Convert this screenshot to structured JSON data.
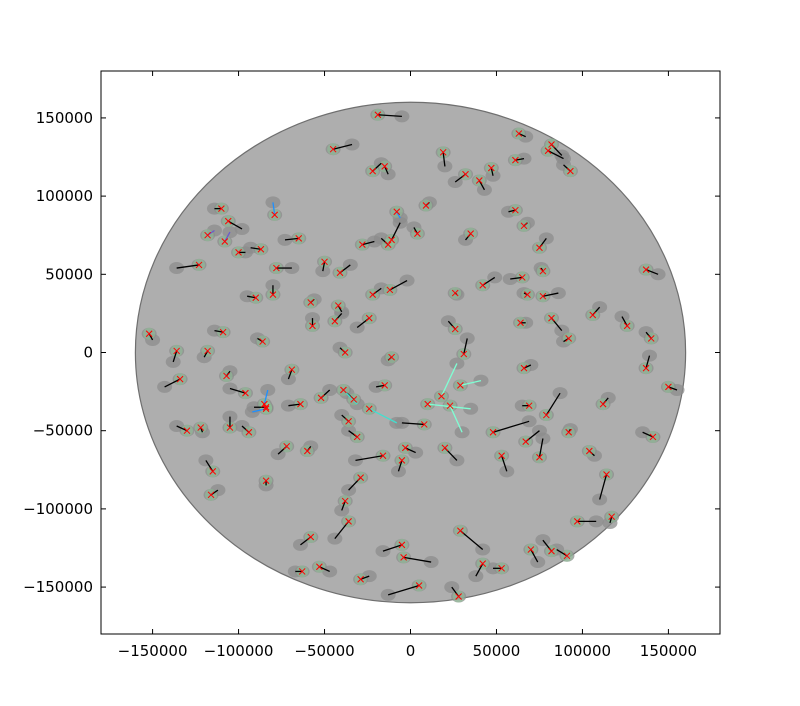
{
  "chart_data": {
    "type": "scatter",
    "title": "",
    "xlabel": "",
    "ylabel": "",
    "xlim": [
      -180000,
      180000
    ],
    "ylim": [
      -180000,
      180000
    ],
    "x_ticks": [
      -150000,
      -100000,
      -50000,
      0,
      50000,
      100000,
      150000
    ],
    "y_ticks": [
      -150000,
      -100000,
      -50000,
      0,
      50000,
      100000,
      150000
    ],
    "x_tick_labels": [
      "−150000",
      "−100000",
      "−50000",
      "0",
      "50000",
      "100000",
      "150000"
    ],
    "y_tick_labels": [
      "−150000",
      "−100000",
      "−50000",
      "0",
      "50000",
      "100000",
      "150000"
    ],
    "grid": false,
    "field": {
      "center": [
        0,
        0
      ],
      "radius": 160000
    },
    "colors": {
      "field": "#aeaeae",
      "field_edge": "#6f6f6f",
      "blob": "#8c8c8c",
      "halo": "#8ecf9a",
      "marker": "#ff0000",
      "segment": "#000000",
      "highlight_1": "#7fffd4",
      "highlight_2": "#40e0d0",
      "highlight_3": "#1e90ff",
      "highlight_4": "#6a5acd"
    },
    "pairs": [
      [
        -19000,
        152000,
        -5000,
        151000,
        0
      ],
      [
        -45000,
        130000,
        -34000,
        133000,
        0
      ],
      [
        -15000,
        119000,
        -13000,
        114000,
        0
      ],
      [
        -22000,
        116000,
        -17000,
        121000,
        0
      ],
      [
        19000,
        128000,
        20000,
        119000,
        0
      ],
      [
        32000,
        114000,
        26000,
        109000,
        0
      ],
      [
        40000,
        110000,
        43000,
        104000,
        0
      ],
      [
        47000,
        118000,
        48000,
        113000,
        0
      ],
      [
        63000,
        140000,
        67000,
        138000,
        0
      ],
      [
        82000,
        133000,
        88000,
        126000,
        0
      ],
      [
        80000,
        129000,
        89000,
        124000,
        0
      ],
      [
        93000,
        116000,
        89000,
        120000,
        0
      ],
      [
        61000,
        123000,
        66000,
        124000,
        0
      ],
      [
        61000,
        91000,
        57000,
        90000,
        0
      ],
      [
        66000,
        81000,
        68000,
        83000,
        0
      ],
      [
        75000,
        67000,
        79000,
        73000,
        0
      ],
      [
        -123000,
        56000,
        -136000,
        54000,
        0
      ],
      [
        -110000,
        92000,
        -114000,
        92000,
        0
      ],
      [
        -106000,
        84000,
        -98000,
        79000,
        0
      ],
      [
        -100000,
        64000,
        -96000,
        64000,
        0
      ],
      [
        -87000,
        66000,
        -93000,
        67000,
        0
      ],
      [
        -78000,
        54000,
        -69000,
        54000,
        0
      ],
      [
        -65000,
        73000,
        -73000,
        72000,
        0
      ],
      [
        -80000,
        37000,
        -80000,
        43000,
        0
      ],
      [
        -90000,
        35000,
        -95000,
        36000,
        0
      ],
      [
        -86000,
        7000,
        -89000,
        9000,
        0
      ],
      [
        -109000,
        13000,
        -114000,
        14000,
        0
      ],
      [
        -152000,
        12000,
        -150000,
        8000,
        0
      ],
      [
        -136000,
        1000,
        -138000,
        -6000,
        0
      ],
      [
        -118000,
        1000,
        -120000,
        -3000,
        0
      ],
      [
        -134000,
        -17000,
        -143000,
        -22000,
        0
      ],
      [
        -107000,
        -15000,
        -105000,
        -12000,
        0
      ],
      [
        -96000,
        -26000,
        -105000,
        -23000,
        0
      ],
      [
        -105000,
        -48000,
        -105000,
        -41000,
        0
      ],
      [
        -94000,
        -51000,
        -98000,
        -47000,
        0
      ],
      [
        -122000,
        -48000,
        -121000,
        -51000,
        0
      ],
      [
        -130000,
        -50000,
        -136000,
        -47000,
        0
      ],
      [
        -115000,
        -76000,
        -119000,
        -69000,
        0
      ],
      [
        -116000,
        -91000,
        -112000,
        -88000,
        0
      ],
      [
        -84000,
        -82000,
        -84000,
        -85000,
        0
      ],
      [
        -72000,
        -60000,
        -77000,
        -65000,
        0
      ],
      [
        -60000,
        -63000,
        -58000,
        -60000,
        0
      ],
      [
        -64000,
        -33000,
        -71000,
        -34000,
        0
      ],
      [
        -69000,
        -11000,
        -71000,
        -17000,
        0
      ],
      [
        -58000,
        32000,
        -56000,
        34000,
        0
      ],
      [
        -57000,
        17000,
        -57000,
        22000,
        0
      ],
      [
        -42000,
        30000,
        -40000,
        26000,
        0
      ],
      [
        -44000,
        20000,
        -40000,
        25000,
        0
      ],
      [
        -38000,
        0,
        -41000,
        3000,
        0
      ],
      [
        -22000,
        37000,
        -17000,
        41000,
        0
      ],
      [
        -12000,
        40000,
        -2000,
        46000,
        0
      ],
      [
        -41000,
        51000,
        -35000,
        56000,
        0
      ],
      [
        -50000,
        58000,
        -51000,
        52000,
        0
      ],
      [
        -24000,
        22000,
        -31000,
        16000,
        0
      ],
      [
        -28000,
        69000,
        -21000,
        71000,
        0
      ],
      [
        -13000,
        69000,
        -17000,
        73000,
        0
      ],
      [
        -11000,
        72000,
        -6000,
        83000,
        0
      ],
      [
        4000,
        76000,
        2000,
        80000,
        0
      ],
      [
        9000,
        94000,
        11000,
        96000,
        0
      ],
      [
        26000,
        38000,
        27000,
        37000,
        0
      ],
      [
        35000,
        76000,
        32000,
        72000,
        0
      ],
      [
        42000,
        43000,
        49000,
        48000,
        0
      ],
      [
        65000,
        48000,
        58000,
        47000,
        0
      ],
      [
        77000,
        52000,
        76000,
        54000,
        0
      ],
      [
        68000,
        37000,
        66000,
        38000,
        0
      ],
      [
        77000,
        36000,
        86000,
        38000,
        0
      ],
      [
        64000,
        19000,
        67000,
        19000,
        0
      ],
      [
        82000,
        22000,
        88000,
        14000,
        0
      ],
      [
        92000,
        9000,
        89000,
        7000,
        0
      ],
      [
        106000,
        24000,
        110000,
        29000,
        0
      ],
      [
        126000,
        17000,
        123000,
        23000,
        0
      ],
      [
        140000,
        9000,
        137000,
        13000,
        0
      ],
      [
        137000,
        -10000,
        139000,
        -2000,
        0
      ],
      [
        137000,
        53000,
        144000,
        50000,
        0
      ],
      [
        150000,
        -22000,
        155000,
        -24000,
        0
      ],
      [
        141000,
        -54000,
        135000,
        -51000,
        0
      ],
      [
        112000,
        -33000,
        115000,
        -29000,
        0
      ],
      [
        104000,
        -63000,
        107000,
        -66000,
        0
      ],
      [
        114000,
        -78000,
        110000,
        -94000,
        0
      ],
      [
        97000,
        -108000,
        108000,
        -108000,
        0
      ],
      [
        117000,
        -105000,
        116000,
        -109000,
        0
      ],
      [
        91000,
        -130000,
        85000,
        -126000,
        0
      ],
      [
        82000,
        -127000,
        77000,
        -120000,
        0
      ],
      [
        70000,
        -126000,
        74000,
        -134000,
        0
      ],
      [
        53000,
        -138000,
        48000,
        -138000,
        0
      ],
      [
        42000,
        -135000,
        38000,
        -143000,
        0
      ],
      [
        29000,
        -114000,
        42000,
        -126000,
        0
      ],
      [
        28000,
        -156000,
        24000,
        -150000,
        0
      ],
      [
        5000,
        -149000,
        -13000,
        -155000,
        0
      ],
      [
        -5000,
        -123000,
        -16000,
        -127000,
        0
      ],
      [
        -4000,
        -131000,
        12000,
        -134000,
        0
      ],
      [
        -36000,
        -108000,
        -44000,
        -119000,
        0
      ],
      [
        -58000,
        -118000,
        -64000,
        -123000,
        0
      ],
      [
        -29000,
        -145000,
        -24000,
        -143000,
        0
      ],
      [
        -53000,
        -137000,
        -47000,
        -140000,
        0
      ],
      [
        -63000,
        -140000,
        -67000,
        -140000,
        0
      ],
      [
        -38000,
        -95000,
        -40000,
        -101000,
        0
      ],
      [
        -29000,
        -80000,
        -36000,
        -88000,
        0
      ],
      [
        -16000,
        -66000,
        -32000,
        -69000,
        0
      ],
      [
        -3000,
        -61000,
        3000,
        -64000,
        0
      ],
      [
        -5000,
        -69000,
        -7000,
        -76000,
        0
      ],
      [
        20000,
        -61000,
        27000,
        -69000,
        0
      ],
      [
        8000,
        -46000,
        -5000,
        -45000,
        0
      ],
      [
        48000,
        -51000,
        69000,
        -44000,
        0
      ],
      [
        53000,
        -66000,
        56000,
        -76000,
        0
      ],
      [
        67000,
        -57000,
        75000,
        -50000,
        0
      ],
      [
        75000,
        -67000,
        77000,
        -55000,
        0
      ],
      [
        79000,
        -40000,
        87000,
        -26000,
        0
      ],
      [
        69000,
        -34000,
        65000,
        -34000,
        0
      ],
      [
        66000,
        -10000,
        70000,
        -8000,
        0
      ],
      [
        92000,
        -51000,
        93000,
        -49000,
        0
      ],
      [
        26000,
        15000,
        22000,
        20000,
        0
      ],
      [
        31000,
        -1000,
        33000,
        9000,
        0
      ],
      [
        -11000,
        -3000,
        -13000,
        -5000,
        0
      ],
      [
        -15000,
        -21000,
        -20000,
        -22000,
        0
      ],
      [
        -84000,
        -35000,
        -91000,
        -35000,
        0
      ],
      [
        -36000,
        -44000,
        -40000,
        -40000,
        0
      ],
      [
        -31000,
        -54000,
        -36000,
        -50000,
        0
      ],
      [
        -33000,
        -30000,
        -37000,
        -26000,
        0
      ],
      [
        -52000,
        -29000,
        -47000,
        -24000,
        0
      ],
      [
        -24000,
        -36000,
        -8000,
        -45000,
        2
      ],
      [
        -85000,
        -33000,
        -83000,
        -24000,
        3
      ],
      [
        -84000,
        -36000,
        -92000,
        -38000,
        3
      ],
      [
        -39000,
        -24000,
        -31000,
        -33000,
        2
      ],
      [
        10000,
        -33000,
        35000,
        -36000,
        1
      ],
      [
        29000,
        -21000,
        41000,
        -18000,
        1
      ],
      [
        18000,
        -28000,
        27000,
        -7000,
        1
      ],
      [
        23000,
        -34000,
        30000,
        -51000,
        1
      ],
      [
        -118000,
        75000,
        -114000,
        78000,
        4
      ],
      [
        -108000,
        71000,
        -105000,
        77000,
        4
      ],
      [
        -8000,
        90000,
        -6000,
        86000,
        3
      ],
      [
        -79000,
        88000,
        -80000,
        96000,
        3
      ]
    ]
  }
}
